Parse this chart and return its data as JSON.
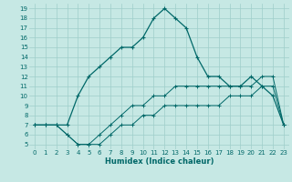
{
  "xlabel": "Humidex (Indice chaleur)",
  "x_ticks": [
    0,
    1,
    2,
    3,
    4,
    5,
    6,
    7,
    8,
    9,
    10,
    11,
    12,
    13,
    14,
    15,
    16,
    17,
    18,
    19,
    20,
    21,
    22,
    23
  ],
  "y_ticks": [
    5,
    6,
    7,
    8,
    9,
    10,
    11,
    12,
    13,
    14,
    15,
    16,
    17,
    18,
    19
  ],
  "ylim": [
    4.5,
    19.5
  ],
  "xlim": [
    -0.5,
    23.5
  ],
  "bg_color": "#c6e8e4",
  "grid_color": "#9ececa",
  "line_color": "#006868",
  "curve1_x": [
    0,
    1,
    2,
    3,
    4,
    5,
    6,
    7,
    8,
    9,
    10,
    11,
    12,
    13,
    14,
    15,
    16,
    17,
    18,
    19,
    20,
    21,
    22,
    23
  ],
  "curve1_y": [
    7,
    7,
    7,
    7,
    10,
    12,
    13,
    14,
    15,
    15,
    16,
    18,
    19,
    18,
    17,
    14,
    12,
    12,
    11,
    11,
    12,
    11,
    10,
    7
  ],
  "curve2_x": [
    0,
    1,
    2,
    3,
    4,
    5,
    6,
    7,
    8,
    9,
    10,
    11,
    12,
    13,
    14,
    15,
    16,
    17,
    18,
    19,
    20,
    21,
    22,
    23
  ],
  "curve2_y": [
    7,
    7,
    7,
    6,
    5,
    5,
    6,
    7,
    8,
    9,
    9,
    10,
    10,
    11,
    11,
    11,
    11,
    11,
    11,
    11,
    11,
    12,
    12,
    7
  ],
  "curve3_x": [
    0,
    1,
    2,
    3,
    4,
    5,
    6,
    7,
    8,
    9,
    10,
    11,
    12,
    13,
    14,
    15,
    16,
    17,
    18,
    19,
    20,
    21,
    22,
    23
  ],
  "curve3_y": [
    7,
    7,
    7,
    6,
    5,
    5,
    5,
    6,
    7,
    7,
    8,
    8,
    9,
    9,
    9,
    9,
    9,
    9,
    10,
    10,
    10,
    11,
    11,
    7
  ],
  "tick_fontsize": 5.0,
  "xlabel_fontsize": 6.0
}
